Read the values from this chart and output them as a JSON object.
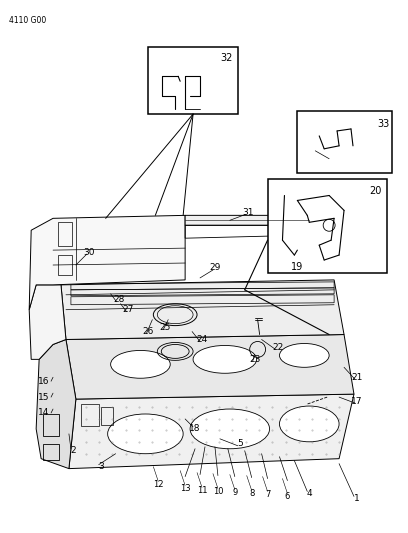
{
  "page_code": "4110 G00",
  "background_color": "#ffffff",
  "line_color": "#000000",
  "figsize": [
    4.08,
    5.33
  ],
  "dpi": 100
}
